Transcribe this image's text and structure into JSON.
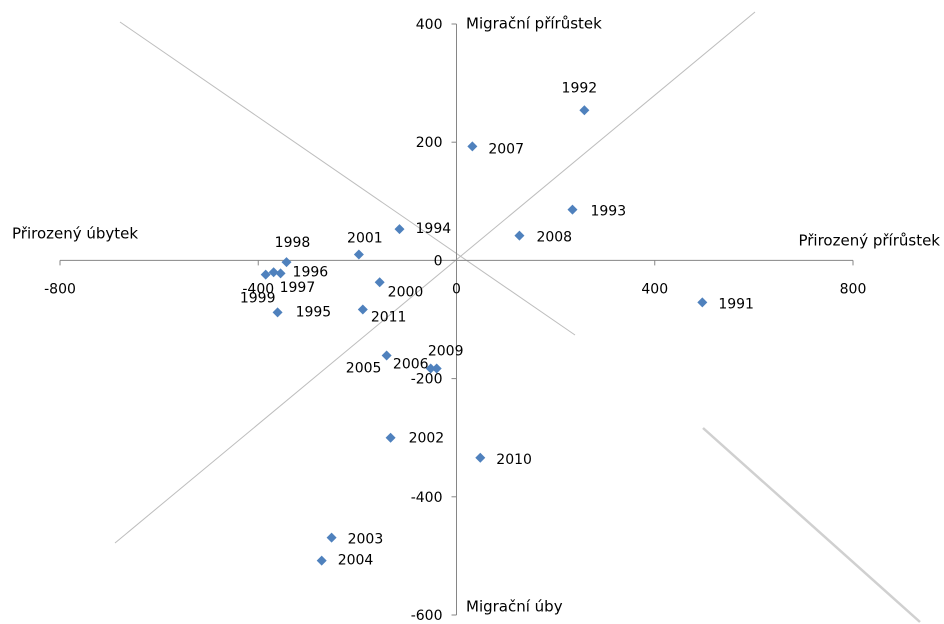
{
  "chart_data": {
    "type": "scatter",
    "x_label_right": "Přirozený přírůstek",
    "x_label_left": "Přirozený úbytek",
    "y_label_top": "Migrační přírůstek",
    "y_label_bottom": "Migrační úby",
    "point_labels": [
      "1991",
      "1992",
      "1993",
      "1994",
      "1995",
      "1996",
      "1997",
      "1998",
      "1999",
      "2000",
      "2001",
      "2002",
      "2003",
      "2004",
      "2005",
      "2006",
      "2007",
      "2008",
      "2009",
      "2010",
      "2011"
    ],
    "x": [
      496,
      258,
      234,
      -115,
      -361,
      -355,
      -369,
      -343,
      -385,
      -155,
      -197,
      -133,
      -252,
      -272,
      -141,
      -52,
      32,
      127,
      -40,
      48,
      -189
    ],
    "values": [
      -71,
      254,
      86,
      53,
      -88,
      -22,
      -20,
      -3,
      -24,
      -37,
      10,
      -300,
      -469,
      -508,
      -161,
      -183,
      193,
      42,
      -183,
      -334,
      -83
    ],
    "color": "#4f81bd",
    "xlim": [
      -800,
      800
    ],
    "xticks": [
      -800,
      -400,
      0,
      400,
      800
    ],
    "ylim": [
      -600,
      400
    ],
    "yticks": [
      -600,
      -400,
      -200,
      0,
      200,
      400
    ]
  }
}
